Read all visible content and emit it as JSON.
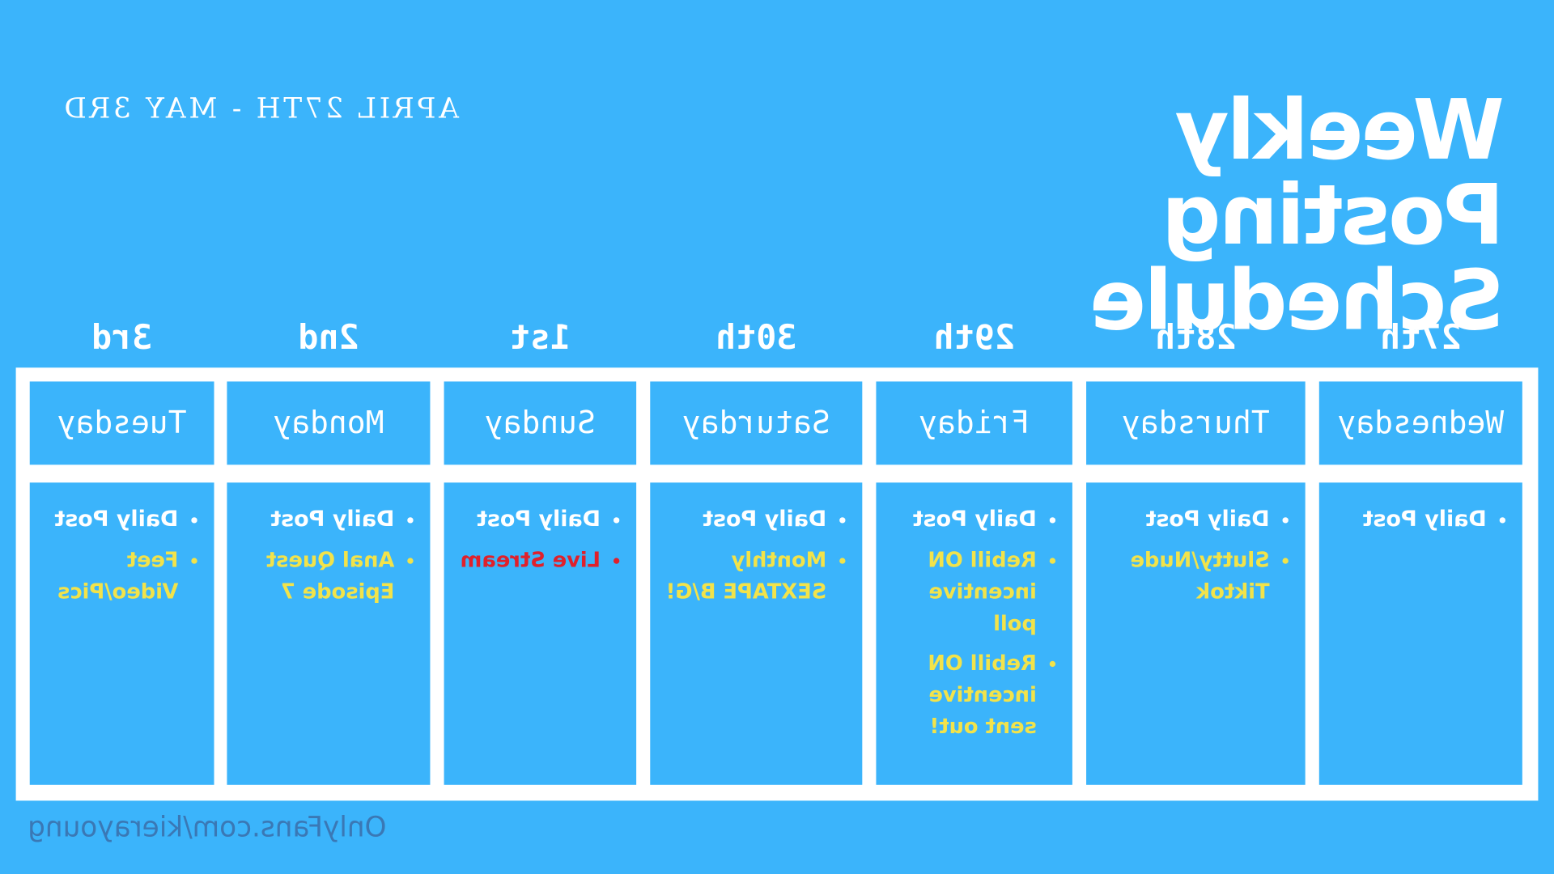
{
  "title": {
    "line1": "Weekly Posting",
    "line2": "Schedule"
  },
  "date_range": "APRIL 27TH - MAY 3RD",
  "days": [
    {
      "date": "27th",
      "day": "Wednesday",
      "items": [
        {
          "text": "Daily Post",
          "color": "white"
        }
      ]
    },
    {
      "date": "28th",
      "day": "Thursday",
      "items": [
        {
          "text": "Daily Post",
          "color": "white"
        },
        {
          "text": "Slutty/Nude Tiktok",
          "color": "yellow"
        }
      ]
    },
    {
      "date": "29th",
      "day": "Friday",
      "items": [
        {
          "text": "Daily Post",
          "color": "white"
        },
        {
          "text": "Rebill ON incentive poll",
          "color": "yellow"
        },
        {
          "text": "Rebill ON incentive sent out!",
          "color": "yellow"
        }
      ]
    },
    {
      "date": "30th",
      "day": "Saturday",
      "items": [
        {
          "text": "Daily Post",
          "color": "white"
        },
        {
          "text": "Monthly SEXTAPE B/G!",
          "color": "yellow"
        }
      ]
    },
    {
      "date": "1st",
      "day": "Sunday",
      "items": [
        {
          "text": "Daily Post",
          "color": "white"
        },
        {
          "text": "Live Stream",
          "color": "red"
        }
      ]
    },
    {
      "date": "2nd",
      "day": "Monday",
      "items": [
        {
          "text": "Daily Post",
          "color": "white"
        },
        {
          "text": "Anal Quest Episode 7",
          "color": "yellow"
        }
      ]
    },
    {
      "date": "3rd",
      "day": "Tuesday",
      "items": [
        {
          "text": "Daily Post",
          "color": "white"
        },
        {
          "text": "Feet Video/Pics",
          "color": "yellow"
        }
      ]
    }
  ],
  "watermark": "OnlyFans.com/kierayoung",
  "colors": {
    "background": "#3bb4fb",
    "white": "#ffffff",
    "yellow": "#f2e34a",
    "red": "#e0202b"
  }
}
